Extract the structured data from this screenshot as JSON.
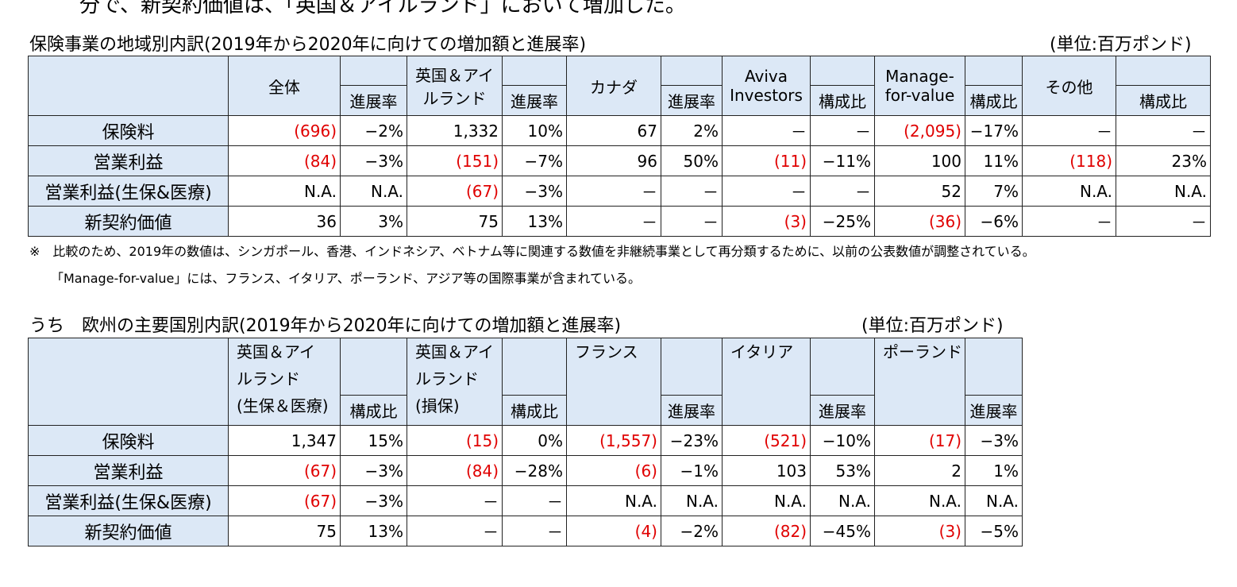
{
  "intro_text": "分で、新契約価値は、「英国＆アイルランド」において増加した。",
  "table1": {
    "title": "保険事業の地域別内訳(2019年から2020年に向けての増加額と進展率)",
    "unit": "(単位:百万ポンド)",
    "groups": [
      {
        "lines": [
          "全体"
        ],
        "sub": "進展率"
      },
      {
        "lines": [
          "英国＆アイ",
          "ルランド"
        ],
        "sub": "進展率"
      },
      {
        "lines": [
          "カナダ"
        ],
        "sub": "進展率"
      },
      {
        "lines": [
          "Aviva",
          "Investors"
        ],
        "sub": "構成比"
      },
      {
        "lines": [
          "Manage-",
          "for-value"
        ],
        "sub": "構成比"
      },
      {
        "lines": [
          "その他"
        ],
        "sub": "構成比"
      }
    ],
    "rows": [
      {
        "label": "保険料",
        "cells": [
          "(696)",
          "−2%",
          "1,332",
          "10%",
          "67",
          "2%",
          "－",
          "－",
          "(2,095)",
          "−17%",
          "－",
          "－"
        ]
      },
      {
        "label": "営業利益",
        "cells": [
          "(84)",
          "−3%",
          "(151)",
          "−7%",
          "96",
          "50%",
          "(11)",
          "−11%",
          "100",
          "11%",
          "(118)",
          "23%"
        ]
      },
      {
        "label": "営業利益(生保&医療)",
        "cells": [
          "N.A.",
          "N.A.",
          "(67)",
          "−3%",
          "－",
          "－",
          "－",
          "－",
          "52",
          "7%",
          "N.A.",
          "N.A."
        ]
      },
      {
        "label": "新契約価値",
        "cells": [
          "36",
          "3%",
          "75",
          "13%",
          "－",
          "－",
          "(3)",
          "−25%",
          "(36)",
          "−6%",
          "－",
          "－"
        ]
      }
    ]
  },
  "notes": [
    "※　比較のため、2019年の数値は、シンガポール、香港、インドネシア、ベトナム等に関連する数値を非継続事業として再分類するために、以前の公表数値が調整されている。",
    "「Manage-for-value」には、フランス、イタリア、ポーランド、アジア等の国際事業が含まれている。"
  ],
  "table2": {
    "title": "うち　欧州の主要国別内訳(2019年から2020年に向けての増加額と進展率)",
    "unit": "(単位:百万ポンド)",
    "groups": [
      {
        "lines": [
          "英国＆アイ",
          "ルランド",
          "(生保＆医療)"
        ],
        "sub": "構成比"
      },
      {
        "lines": [
          "英国＆アイ",
          "ルランド",
          "(損保)"
        ],
        "sub": "構成比"
      },
      {
        "lines": [
          "フランス"
        ],
        "sub": "進展率"
      },
      {
        "lines": [
          "イタリア"
        ],
        "sub": "進展率"
      },
      {
        "lines": [
          "ポーランド"
        ],
        "sub": "進展率"
      }
    ],
    "rows": [
      {
        "label": "保険料",
        "cells": [
          "1,347",
          "15%",
          "(15)",
          "0%",
          "(1,557)",
          "−23%",
          "(521)",
          "−10%",
          "(17)",
          "−3%"
        ]
      },
      {
        "label": "営業利益",
        "cells": [
          "(67)",
          "−3%",
          "(84)",
          "−28%",
          "(6)",
          "−1%",
          "103",
          "53%",
          "2",
          "1%"
        ]
      },
      {
        "label": "営業利益(生保&医療)",
        "cells": [
          "(67)",
          "−3%",
          "－",
          "－",
          "N.A.",
          "N.A.",
          "N.A.",
          "N.A.",
          "N.A.",
          "N.A."
        ]
      },
      {
        "label": "新契約価値",
        "cells": [
          "75",
          "13%",
          "－",
          "－",
          "(4)",
          "−2%",
          "(82)",
          "−45%",
          "(3)",
          "−5%"
        ]
      }
    ]
  }
}
